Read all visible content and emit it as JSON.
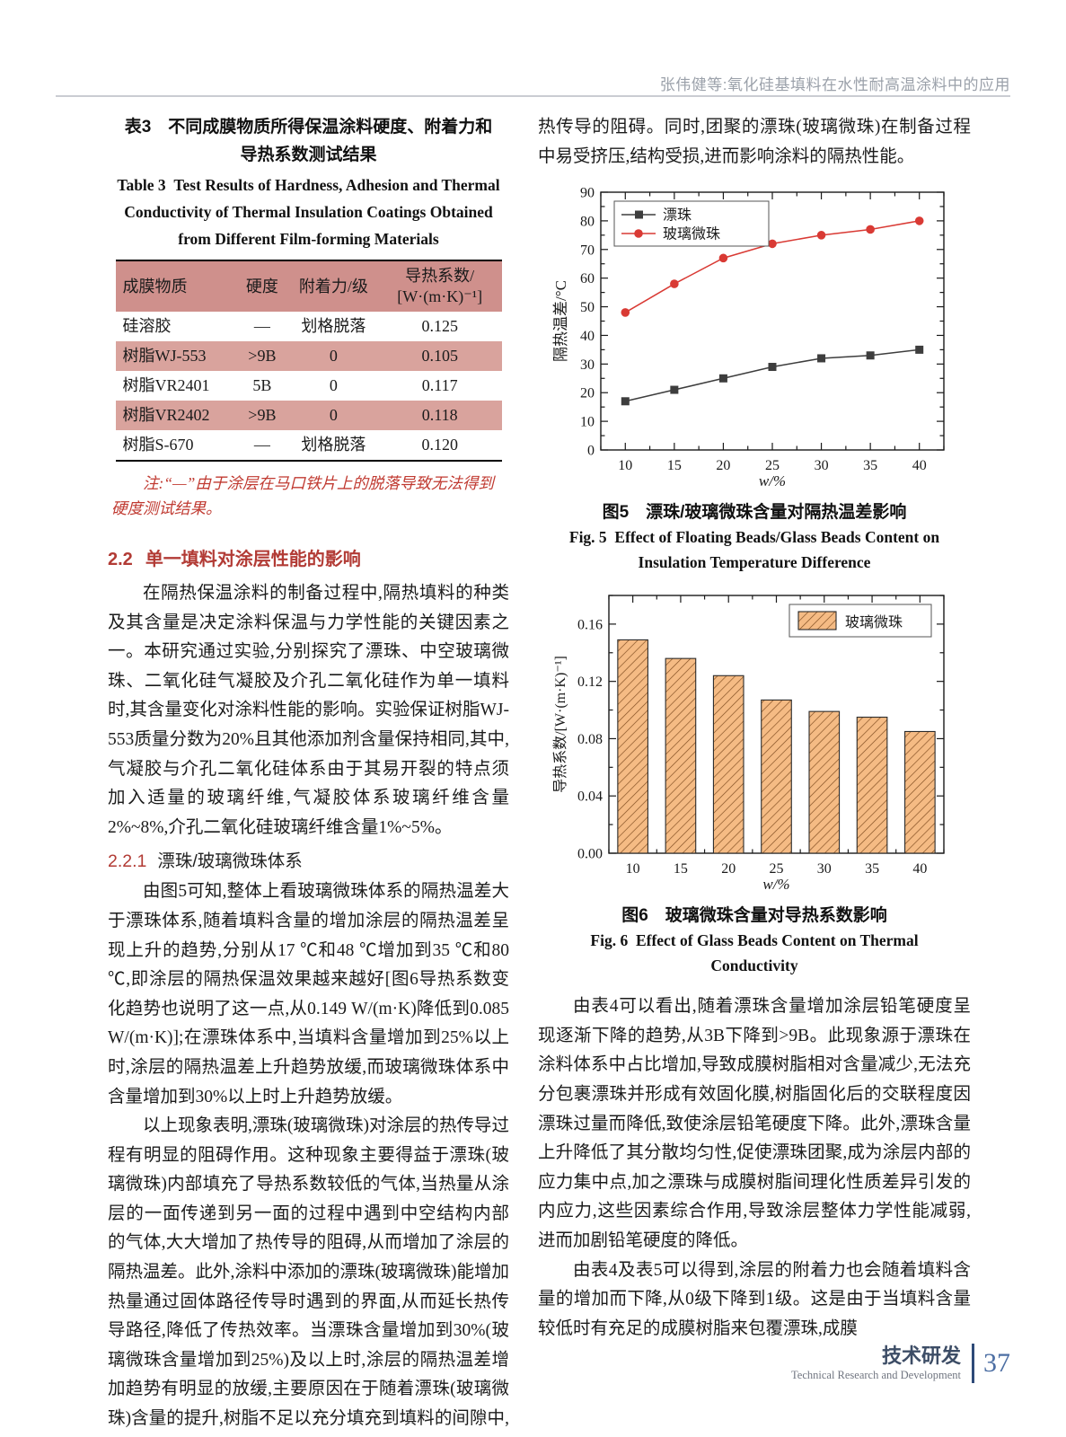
{
  "header": {
    "running_title": "张伟健等:氧化硅基填料在水性耐高温涂料中的应用"
  },
  "footer": {
    "section_cn": "技术研发",
    "section_en": "Technical Research and Development",
    "page_number": "37"
  },
  "table3": {
    "caption_cn_line1": "表3　不同成膜物质所得保温涂料硬度、附着力和",
    "caption_cn_line2": "导热系数测试结果",
    "caption_en": "Table 3 Test Results of Hardness, Adhesion and Thermal Conductivity of Thermal Insulation Coatings Obtained from Different Film-forming Materials",
    "columns": [
      "成膜物质",
      "硬度",
      "附着力/级",
      "导热系数/\n[W·(m·K)⁻¹]"
    ],
    "rows": [
      {
        "cells": [
          "硅溶胶",
          "—",
          "划格脱落",
          "0.125"
        ],
        "shaded": false
      },
      {
        "cells": [
          "树脂WJ-553",
          ">9B",
          "0",
          "0.105"
        ],
        "shaded": true
      },
      {
        "cells": [
          "树脂VR2401",
          "5B",
          "0",
          "0.117"
        ],
        "shaded": false
      },
      {
        "cells": [
          "树脂VR2402",
          ">9B",
          "0",
          "0.118"
        ],
        "shaded": true
      },
      {
        "cells": [
          "树脂S-670",
          "—",
          "划格脱落",
          "0.120"
        ],
        "shaded": false
      }
    ],
    "note": "注:“—”由于涂层在马口铁片上的脱落导致无法得到硬度测试结果。"
  },
  "sections": {
    "s22": {
      "number": "2.2",
      "title": "单一填料对涂层性能的影响"
    },
    "s221": {
      "number": "2.2.1",
      "title": "漂珠/玻璃微珠体系"
    }
  },
  "paragraphs": {
    "left1": "在隔热保温涂料的制备过程中,隔热填料的种类及其含量是决定涂料保温与力学性能的关键因素之一。本研究通过实验,分别探究了漂珠、中空玻璃微珠、二氧化硅气凝胶及介孔二氧化硅作为单一填料时,其含量变化对涂料性能的影响。实验保证树脂WJ-553质量分数为20%且其他添加剂含量保持相同,其中,气凝胶与介孔二氧化硅体系由于其易开裂的特点须加入适量的玻璃纤维,气凝胶体系玻璃纤维含量2%~8%,介孔二氧化硅玻璃纤维含量1%~5%。",
    "left2": "由图5可知,整体上看玻璃微珠体系的隔热温差大于漂珠体系,随着填料含量的增加涂层的隔热温差呈现上升的趋势,分别从17 ℃和48 ℃增加到35 ℃和80 ℃,即涂层的隔热保温效果越来越好[图6导热系数变化趋势也说明了这一点,从0.149 W/(m·K)降低到0.085 W/(m·K)];在漂珠体系中,当填料含量增加到25%以上时,涂层的隔热温差上升趋势放缓,而玻璃微珠体系中含量增加到30%以上时上升趋势放缓。",
    "left3": "以上现象表明,漂珠(玻璃微珠)对涂层的热传导过程有明显的阻碍作用。这种现象主要得益于漂珠(玻璃微珠)内部填充了导热系数较低的气体,当热量从涂层的一面传递到另一面的过程中遇到中空结构内部的气体,大大增加了热传导的阻碍,从而增加了涂层的隔热温差。此外,涂料中添加的漂珠(玻璃微珠)能增加热量通过固体路径传导时遇到的界面,从而延长热传导路径,降低了传热效率。当漂珠含量增加到30%(玻璃微珠含量增加到25%)及以上时,涂层的隔热温差增加趋势有明显的放缓,主要原因在于随着漂珠(玻璃微珠)含量的提升,树脂不足以充分填充到填料的间隙中,引发漂珠(玻璃微珠)间的接触与团聚。这种团聚减少了固体热传导路径,从而降低了对",
    "right_top": "热传导的阻碍。同时,团聚的漂珠(玻璃微珠)在制备过程中易受挤压,结构受损,进而影响涂料的隔热性能。",
    "right1": "由表4可以看出,随着漂珠含量增加涂层铅笔硬度呈现逐渐下降的趋势,从3B下降到>9B。此现象源于漂珠在涂料体系中占比增加,导致成膜树脂相对含量减少,无法充分包裹漂珠并形成有效固化膜,树脂固化后的交联程度因漂珠过量而降低,致使涂层铅笔硬度下降。此外,漂珠含量上升降低了其分散均匀性,促使漂珠团聚,成为涂层内部的应力集中点,加之漂珠与成膜树脂间理化性质差异引发的内应力,这些因素综合作用,导致涂层整体力学性能减弱,进而加剧铅笔硬度的降低。",
    "right2": "由表4及表5可以得到,涂层的附着力也会随着填料含量的增加而下降,从0级下降到1级。这是由于当填料含量较低时有充足的成膜树脂来包覆漂珠,成膜"
  },
  "chart_data": [
    {
      "type": "line",
      "x": [
        10,
        15,
        20,
        25,
        30,
        35,
        40
      ],
      "series": [
        {
          "name": "漂珠",
          "values": [
            17,
            21,
            25,
            29,
            32,
            33,
            35
          ],
          "color": "#3d3d3d",
          "marker": "square"
        },
        {
          "name": "玻璃微珠",
          "values": [
            48,
            58,
            67,
            72,
            75,
            77,
            80
          ],
          "color": "#d93a34",
          "marker": "circle"
        }
      ],
      "xlabel": "w/%",
      "ylabel": "隔热温差/°C",
      "xlim": [
        7.5,
        42.5
      ],
      "ylim": [
        0,
        90
      ],
      "x_major": 5,
      "x_minor": 2.5,
      "y_major": 10,
      "y_minor": 5,
      "y_dec": 0,
      "x_ticks": [
        10,
        15,
        20,
        25,
        30,
        35,
        40
      ],
      "y_ticks": [
        0,
        10,
        20,
        30,
        40,
        50,
        60,
        70,
        80,
        90
      ],
      "legend_position": "top-left",
      "grid": false,
      "caption_cn": "图5　漂珠/玻璃微珠含量对隔热温差影响",
      "caption_en": "Fig. 5 Effect of Floating Beads/Glass Beads Content on Insulation Temperature Difference"
    },
    {
      "type": "bar",
      "categories": [
        10,
        15,
        20,
        25,
        30,
        35,
        40
      ],
      "values": [
        0.149,
        0.136,
        0.124,
        0.107,
        0.099,
        0.095,
        0.085
      ],
      "series_name": "玻璃微珠",
      "bar_fill": "#f5bb84",
      "hatch_color": "#7d4a1e",
      "xlabel": "w/%",
      "ylabel": "导热系数/[W·(m·K)⁻¹]",
      "xlim": [
        7.5,
        42.5
      ],
      "ylim": [
        0,
        0.18
      ],
      "x_major": 5,
      "x_minor": 2.5,
      "y_major": 0.04,
      "y_minor": 0.02,
      "y_dec": 2,
      "x_ticks": [
        10,
        15,
        20,
        25,
        30,
        35,
        40
      ],
      "y_ticks": [
        0.0,
        0.04,
        0.08,
        0.12,
        0.16
      ],
      "legend_position": "top-right",
      "grid": false,
      "caption_cn": "图6　玻璃微珠含量对导热系数影响",
      "caption_en": "Fig. 6 Effect of Glass Beads Content on Thermal Conductivity"
    }
  ]
}
